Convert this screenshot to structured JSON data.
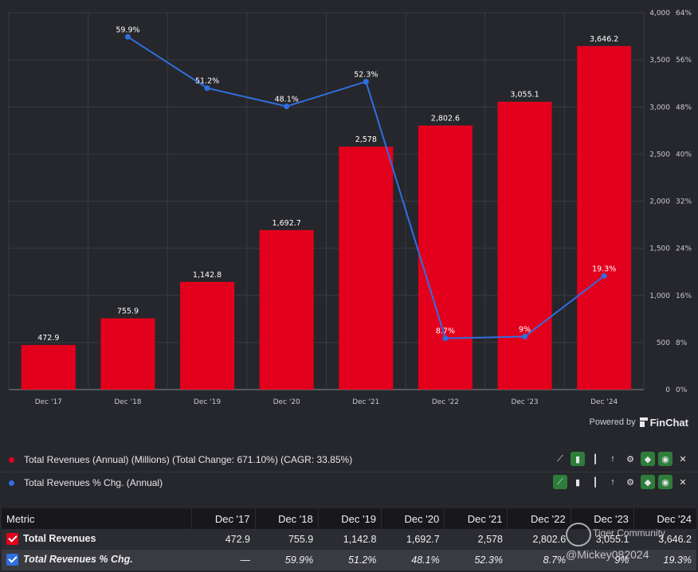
{
  "chart_data": {
    "type": "bar",
    "categories": [
      "Dec '17",
      "Dec '18",
      "Dec '19",
      "Dec '20",
      "Dec '21",
      "Dec '22",
      "Dec '23",
      "Dec '24"
    ],
    "series": [
      {
        "name": "Total Revenues (Annual) (Millions)",
        "type": "bar",
        "axis": "left",
        "values": [
          472.9,
          755.9,
          1142.8,
          1692.7,
          2578,
          2802.6,
          3055.1,
          3646.2
        ],
        "labels": [
          "472.9",
          "755.9",
          "1,142.8",
          "1,692.7",
          "2,578",
          "2,802.6",
          "3,055.1",
          "3,646.2"
        ],
        "color": "#e3001d"
      },
      {
        "name": "Total Revenues % Chg. (Annual)",
        "type": "line",
        "axis": "right",
        "values": [
          null,
          59.9,
          51.2,
          48.1,
          52.3,
          8.7,
          9,
          19.3
        ],
        "labels": [
          "",
          "59.9%",
          "51.2%",
          "48.1%",
          "52.3%",
          "8.7%",
          "9%",
          "19.3%"
        ],
        "color": "#2f6fe0"
      }
    ],
    "x_tick_labels": [
      "Dec '17",
      "Dec '18",
      "Dec '19",
      "Dec '20",
      "Dec '21",
      "Dec '22",
      "Dec '23",
      "Dec '24"
    ],
    "y_left": {
      "ylim": [
        0,
        4000
      ],
      "ticks": [
        "0",
        "500",
        "1,000",
        "1,500",
        "2,000",
        "2,500",
        "3,000",
        "3,500",
        "4,000"
      ]
    },
    "y_right": {
      "ylim": [
        0,
        64
      ],
      "ticks": [
        "0%",
        "8%",
        "16%",
        "24%",
        "32%",
        "40%",
        "48%",
        "56%",
        "64%"
      ]
    },
    "grid": true
  },
  "powered_by": {
    "text": "Powered by",
    "brand": "FinChat"
  },
  "legend": [
    {
      "label": "Total Revenues (Annual) (Millions) (Total Change: 671.10%) (CAGR: 33.85%)",
      "color": "#e3001d"
    },
    {
      "label": "Total Revenues % Chg. (Annual)",
      "color": "#2f6fe0"
    }
  ],
  "table": {
    "header_label": "Metric",
    "columns": [
      "Dec '17",
      "Dec '18",
      "Dec '19",
      "Dec '20",
      "Dec '21",
      "Dec '22",
      "Dec '23",
      "Dec '24"
    ],
    "rows": [
      {
        "label": "Total Revenues",
        "check_color": "#e3001d",
        "cells": [
          "472.9",
          "755.9",
          "1,142.8",
          "1,692.7",
          "2,578",
          "2,802.6",
          "3,055.1",
          "3,646.2"
        ]
      },
      {
        "label": "Total Revenues % Chg.",
        "check_color": "#2f6fe0",
        "cells": [
          "—",
          "59.9%",
          "51.2%",
          "48.1%",
          "52.3%",
          "8.7%",
          "9%",
          "19.3%"
        ]
      }
    ]
  },
  "watermark": {
    "line1": "Tiger Community",
    "line2": "@Mickey082024"
  },
  "colors": {
    "background": "#26272c",
    "bar": "#e3001d",
    "line": "#2f6fe0",
    "tool_active": "#2f7d3a"
  },
  "toolbar_icons": [
    "line-chart-icon",
    "bar-chart-icon",
    "column-chart-icon",
    "sort-icon",
    "gear-icon",
    "tag-icon",
    "eye-icon",
    "close-icon"
  ]
}
